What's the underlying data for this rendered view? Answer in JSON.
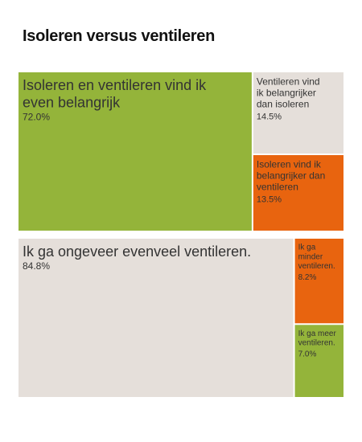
{
  "title": "Isoleren versus ventileren",
  "colors": {
    "green": "#94b43a",
    "beige": "#e5dfda",
    "orange": "#e8640f",
    "text": "#333333"
  },
  "chart_data": [
    {
      "type": "treemap",
      "unit": "%",
      "items": [
        {
          "label": "Isoleren en ventileren vind ik even belangrijk",
          "value": 72.0,
          "value_label": "72.0%",
          "color": "green"
        },
        {
          "label": "Ventileren vind ik belangrijker dan isoleren",
          "value": 14.5,
          "value_label": "14.5%",
          "color": "beige"
        },
        {
          "label": "Isoleren vind ik belangrijker dan ventileren",
          "value": 13.5,
          "value_label": "13.5%",
          "color": "orange"
        }
      ]
    },
    {
      "type": "treemap",
      "unit": "%",
      "items": [
        {
          "label": "Ik ga ongeveer evenveel ventileren.",
          "value": 84.8,
          "value_label": "84.8%",
          "color": "beige"
        },
        {
          "label": "Ik ga minder ventileren.",
          "value": 8.2,
          "value_label": "8.2%",
          "color": "orange"
        },
        {
          "label": "Ik ga meer ventileren.",
          "value": 7.0,
          "value_label": "7.0%",
          "color": "green"
        }
      ]
    }
  ]
}
